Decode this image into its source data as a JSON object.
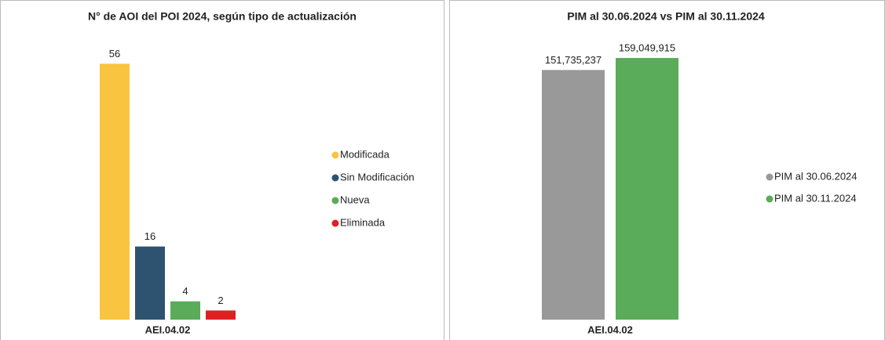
{
  "chart_data": [
    {
      "type": "bar",
      "title": "N° de AOI del POI 2024, según tipo de actualización",
      "categories": [
        "AEI.04.02"
      ],
      "series": [
        {
          "name": "Modificada",
          "color": "#f9c440",
          "values": [
            56
          ]
        },
        {
          "name": "Sin Modificación",
          "color": "#2e5371",
          "values": [
            16
          ]
        },
        {
          "name": "Nueva",
          "color": "#5aab5a",
          "values": [
            4
          ]
        },
        {
          "name": "Eliminada",
          "color": "#e02020",
          "values": [
            2
          ]
        }
      ],
      "ylim": [
        0,
        60
      ]
    },
    {
      "type": "bar",
      "title": "PIM al 30.06.2024 vs PIM al 30.11.2024",
      "categories": [
        "AEI.04.02"
      ],
      "series": [
        {
          "name": "PIM al 30.06.2024",
          "color": "#999999",
          "values": [
            151735237
          ],
          "value_labels": [
            "151,735,237"
          ]
        },
        {
          "name": "PIM al 30.11.2024",
          "color": "#5aab5a",
          "values": [
            159049915
          ],
          "value_labels": [
            "159,049,915"
          ]
        }
      ],
      "ylim": [
        0,
        180000000
      ]
    }
  ]
}
